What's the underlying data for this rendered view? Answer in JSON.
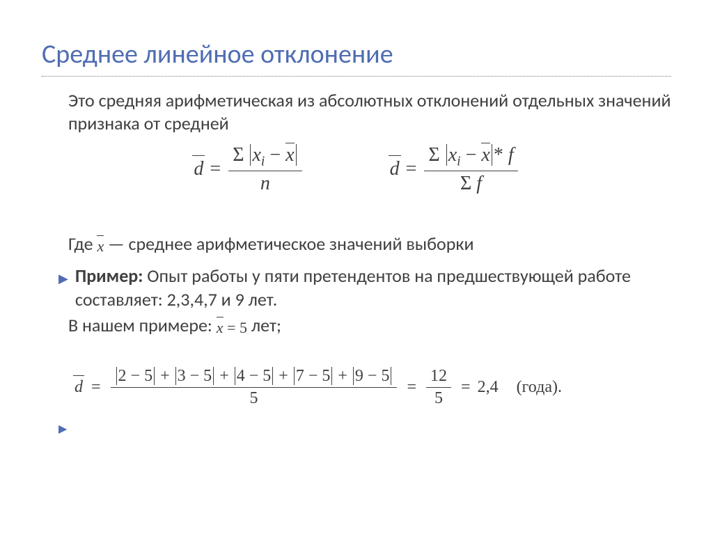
{
  "title": "Среднее линейное отклонение",
  "definition": "Это средняя арифметическая из абсолютных отклонений отдельных значений признака от средней",
  "formula1": {
    "lhs_symbol": "d",
    "numerator_sum": "Σ",
    "numerator_expr": "|xᵢ − x̄|",
    "denominator": "n"
  },
  "formula2": {
    "lhs_symbol": "d",
    "numerator_prefix": "Σ",
    "numerator_expr": "|xᵢ − x̄|* f",
    "denominator": "Σ f"
  },
  "where_text_pre": "Где ",
  "where_symbol": "x",
  "where_text_post": " — среднее арифметическое значений выборки",
  "example_label": "Пример:",
  "example_text": " Опыт работы у пяти претендентов на предшествующей работе составляет: 2,3,4,7 и 9 лет.",
  "in_example_pre": "В нашем примере:  ",
  "in_example_value": "x = 5",
  "in_example_post": " лет;",
  "calculation": {
    "lhs_symbol": "d",
    "terms": [
      "2 − 5",
      "3 − 5",
      "4 − 5",
      "7 − 5",
      "9 − 5"
    ],
    "denominator": "5",
    "step2_num": "12",
    "step2_den": "5",
    "result": "2,4",
    "unit": "(года)."
  },
  "colors": {
    "title": "#4f6db3",
    "text": "#404040",
    "bullet": "#4f6db3",
    "background": "#ffffff"
  },
  "fontsizes": {
    "title": 38,
    "body": 26,
    "formula": 28,
    "calc": 24
  }
}
